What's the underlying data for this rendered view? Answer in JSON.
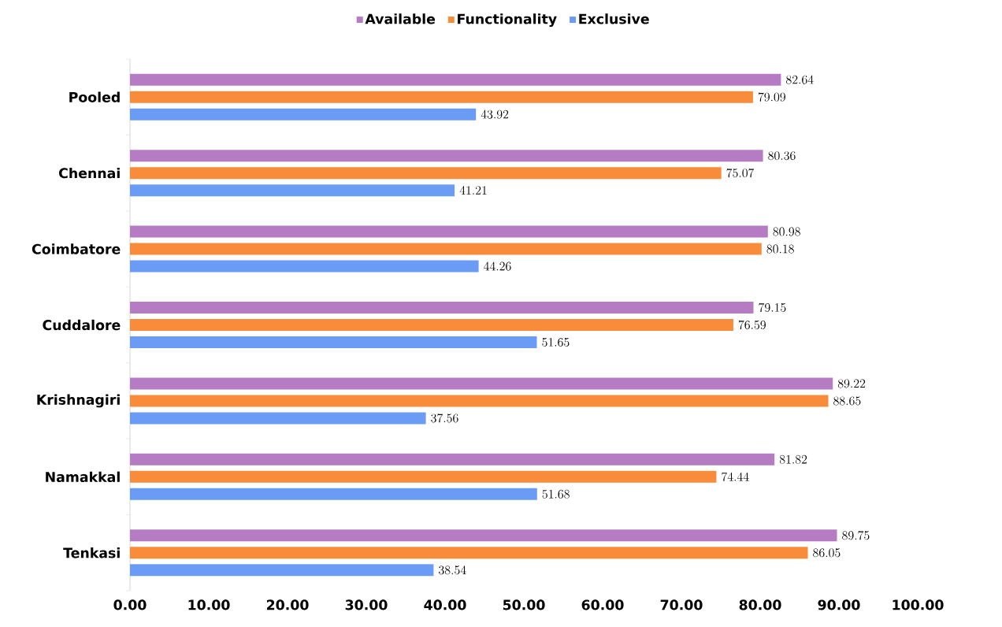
{
  "chart_data": {
    "type": "bar",
    "orientation": "horizontal",
    "categories": [
      "Pooled",
      "Chennai",
      "Coimbatore",
      "Cuddalore",
      "Krishnagiri",
      "Namakkal",
      "Tenkasi"
    ],
    "series": [
      {
        "name": "Available",
        "color": "#b57cc4",
        "values": [
          82.64,
          80.36,
          80.98,
          79.15,
          89.22,
          81.82,
          89.75
        ]
      },
      {
        "name": "Functionality",
        "color": "#f98c3b",
        "values": [
          79.09,
          75.07,
          80.18,
          76.59,
          88.65,
          74.44,
          86.05
        ]
      },
      {
        "name": "Exclusive",
        "color": "#6a9cf5",
        "values": [
          43.92,
          41.21,
          44.26,
          51.65,
          37.56,
          51.68,
          38.54
        ]
      }
    ],
    "xlim": [
      0,
      100
    ],
    "xticks": [
      {
        "value": 0,
        "label": "0.00"
      },
      {
        "value": 10,
        "label": "10.00"
      },
      {
        "value": 20,
        "label": "20.00"
      },
      {
        "value": 30,
        "label": "30.00"
      },
      {
        "value": 40,
        "label": "40.00"
      },
      {
        "value": 50,
        "label": "50.00"
      },
      {
        "value": 60,
        "label": "60.00"
      },
      {
        "value": 70,
        "label": "70.00"
      },
      {
        "value": 80,
        "label": "80.00"
      },
      {
        "value": 90,
        "label": "90.00"
      },
      {
        "value": 100,
        "label": "100.00"
      }
    ],
    "data_labels": true,
    "legend": "top",
    "grid": false
  }
}
